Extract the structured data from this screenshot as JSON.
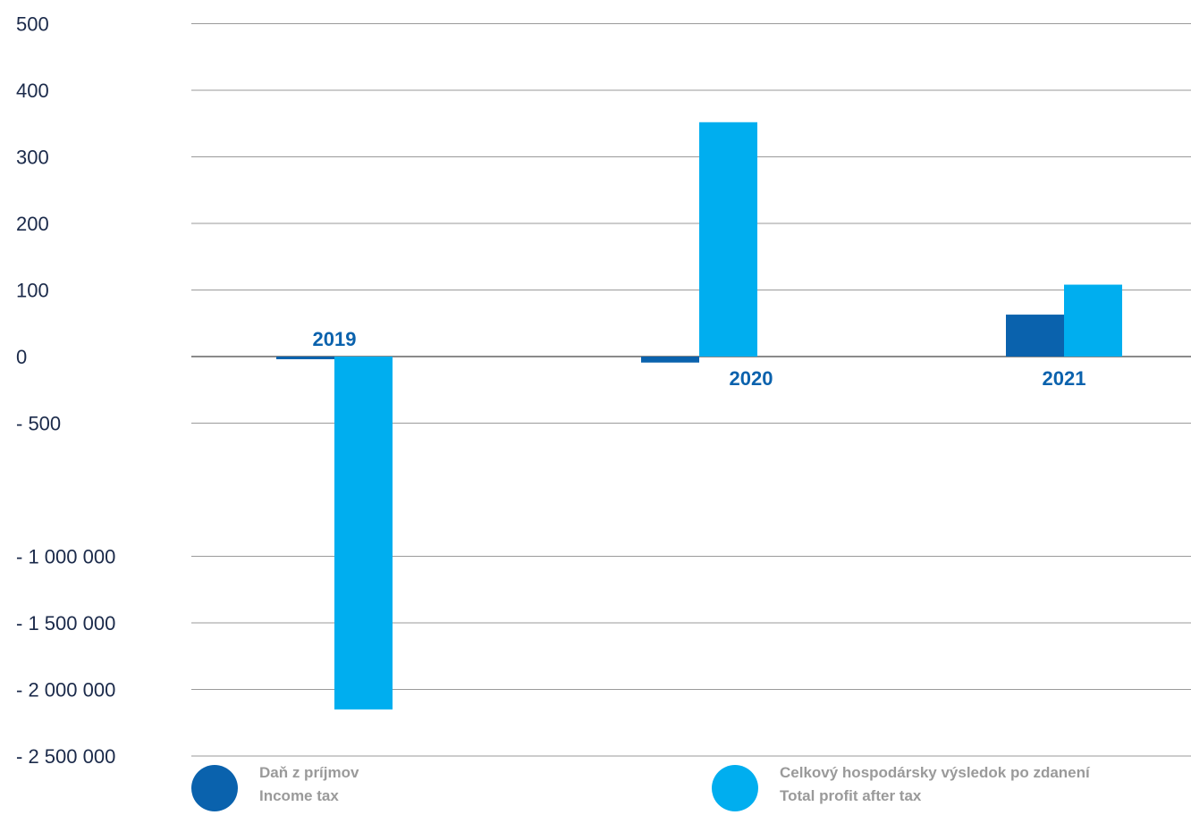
{
  "chart_data": {
    "type": "bar",
    "title": "",
    "xlabel": "",
    "ylabel": "",
    "categories": [
      "2019",
      "2020",
      "2021"
    ],
    "y_tick_labels": [
      "500",
      "400",
      "300",
      "200",
      "100",
      "0",
      "- 500",
      "- 1 000 000",
      "- 1 500 000",
      "- 2 000 000",
      "- 2 500 000"
    ],
    "y_tick_values": [
      500,
      400,
      300,
      200,
      100,
      0,
      -500,
      -1000000,
      -1500000,
      -2000000,
      -2500000
    ],
    "axis_note": "piecewise axis: 0 to 500 upward in steps of 100; below 0 the tick labels read - 500, - 1 000 000, - 1 500 000, - 2 000 000, - 2 500 000",
    "grid": true,
    "legend_position": "bottom",
    "series": [
      {
        "name": "Daň z príjmov / Income tax",
        "color": "#0a62ad",
        "values": [
          -20,
          -45,
          63
        ]
      },
      {
        "name": "Celkový hospodársky výsledok po zdanení / Total profit after tax",
        "color": "#00aeef",
        "values": [
          -2150000,
          352,
          108
        ]
      }
    ]
  },
  "legend": [
    {
      "line1": "Daň z príjmov",
      "line2": "Income tax",
      "color": "#0a62ad"
    },
    {
      "line1": "Celkový hospodársky výsledok po zdanení",
      "line2": "Total profit after tax",
      "color": "#00aeef"
    }
  ]
}
